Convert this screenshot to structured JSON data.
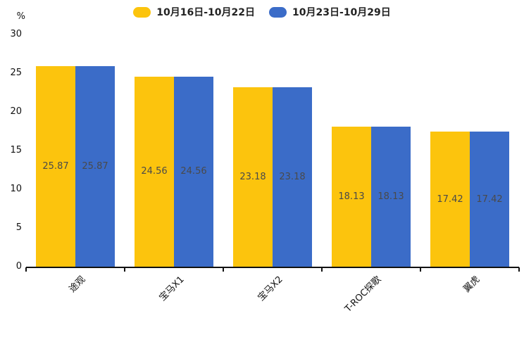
{
  "chart_data": {
    "type": "bar",
    "categories": [
      "途观",
      "宝马X1",
      "宝马X2",
      "T-ROC探歌",
      "翼虎"
    ],
    "series": [
      {
        "name": "10月16日-10月22日",
        "color": "#FCC40D",
        "values": [
          25.87,
          24.56,
          23.18,
          18.13,
          17.42
        ]
      },
      {
        "name": "10月23日-10月29日",
        "color": "#3B6CC8",
        "values": [
          25.87,
          24.56,
          23.18,
          18.13,
          17.42
        ]
      }
    ],
    "title": "",
    "xlabel": "",
    "ylabel": "%",
    "ylim": [
      0,
      30
    ],
    "yticks": [
      0,
      5,
      10,
      15,
      20,
      25,
      30
    ],
    "legend_position": "top",
    "grid": false,
    "value_labels": "inside-center",
    "axis_color": "#111111",
    "label_color": "#4a4a4a"
  }
}
